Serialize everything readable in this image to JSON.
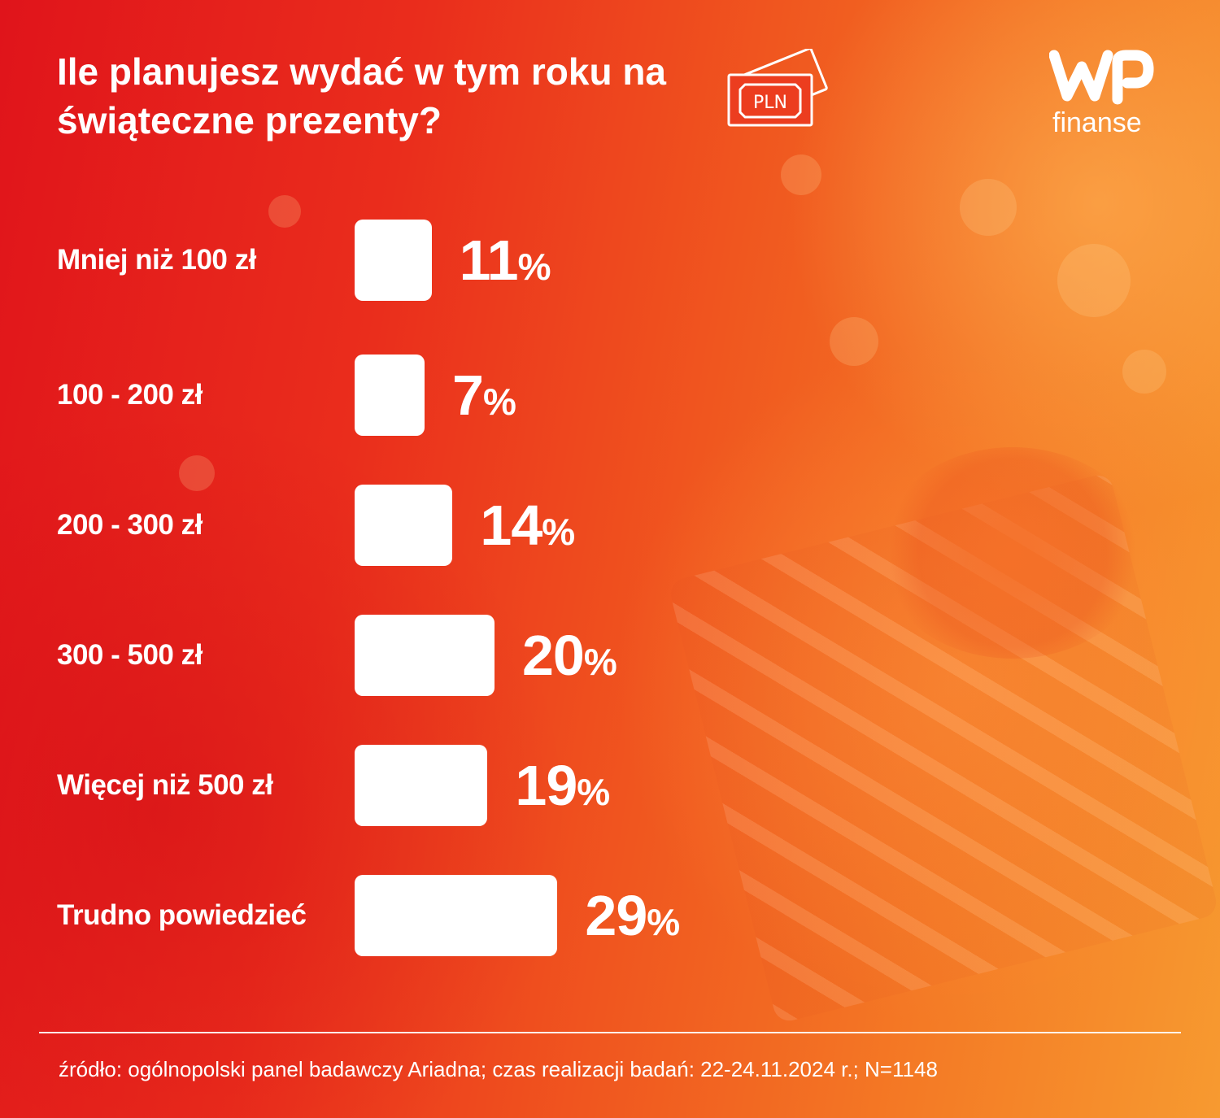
{
  "title": "Ile planujesz wydać w tym roku na świąteczne prezenty?",
  "badge": {
    "label": "PLN"
  },
  "brand": {
    "name": "finanse"
  },
  "chart_data": {
    "type": "bar",
    "orientation": "horizontal",
    "categories": [
      "Mniej niż 100 zł",
      "100 - 200 zł",
      "200 - 300 zł",
      "300 - 500 zł",
      "Więcej niż 500 zł",
      "Trudno powiedzieć"
    ],
    "values": [
      11,
      7,
      14,
      20,
      19,
      29
    ],
    "value_labels": [
      "11",
      "7",
      "14",
      "20",
      "19",
      "29"
    ],
    "unit": "%",
    "bar_color": "#ffffff"
  },
  "source": "źródło: ogólnopolski panel badawczy Ariadna; czas realizacji badań: 22-24.11.2024 r.; N=1148",
  "colors": {
    "background_start": "#e0141b",
    "background_end": "#f79a30",
    "text": "#ffffff"
  }
}
